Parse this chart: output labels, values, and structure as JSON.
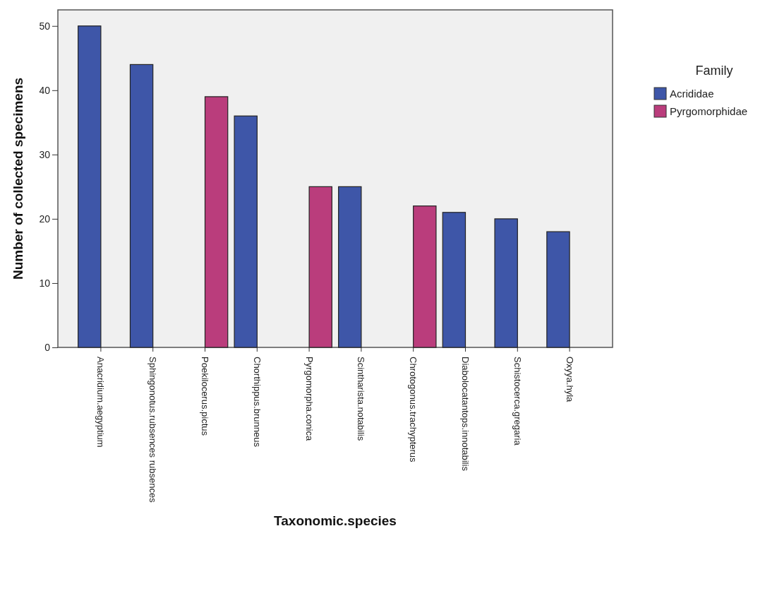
{
  "chart_data": {
    "type": "bar",
    "xlabel": "Taxonomic.species",
    "ylabel": "Number of collected specimens",
    "legend_title": "Family",
    "categories": [
      "Anacridium.aegyptium",
      "Sphingonotus.rubsences rubsences",
      "Poekilocerus.pictus",
      "Chorthippus.brunneus",
      "Pyrgomorpha.conica",
      "Scintharista.notabilis",
      "Chrotogonus.trachypterus",
      "Diabolocatantops.innotabilis",
      "Schistocerca.gregaria",
      "Oxyya.hyla"
    ],
    "series": [
      {
        "name": "Acrididae",
        "color": "#3e56a8",
        "values": [
          50,
          44,
          0,
          36,
          0,
          25,
          0,
          21,
          20,
          18
        ]
      },
      {
        "name": "Pyrgomorphidae",
        "color": "#ba3d7c",
        "values": [
          0,
          0,
          39,
          0,
          25,
          0,
          22,
          0,
          0,
          0
        ]
      }
    ],
    "ylim": [
      0,
      52.5
    ],
    "yticks": [
      0,
      10,
      20,
      30,
      40,
      50
    ],
    "grid": false,
    "legend": "top right"
  }
}
